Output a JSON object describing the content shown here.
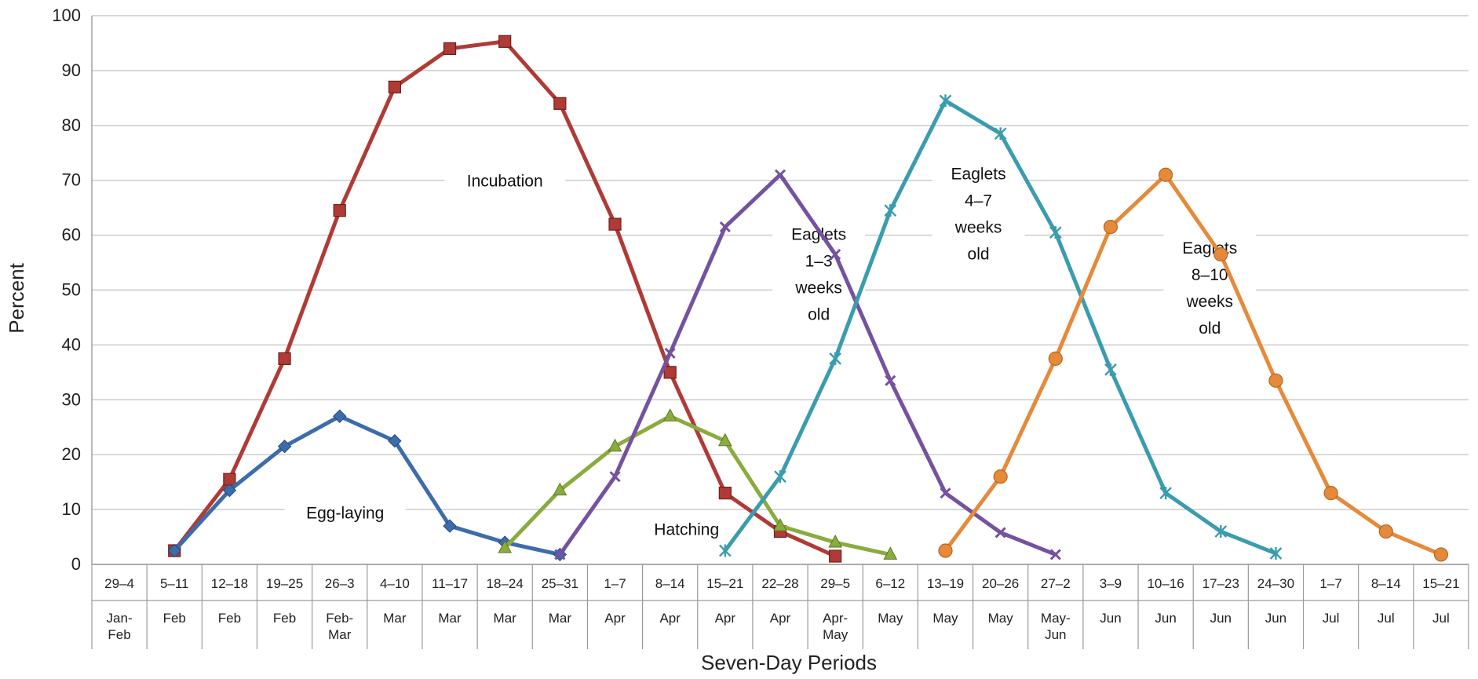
{
  "chart_data": {
    "type": "line",
    "xlabel": "Seven-Day Periods",
    "ylabel": "Percent",
    "ylim": [
      0,
      100
    ],
    "yticks": [
      0,
      10,
      20,
      30,
      40,
      50,
      60,
      70,
      80,
      90,
      100
    ],
    "grid": "horizontal",
    "categories": [
      {
        "days": "29–4",
        "month": "Jan-Feb"
      },
      {
        "days": "5–11",
        "month": "Feb"
      },
      {
        "days": "12–18",
        "month": "Feb"
      },
      {
        "days": "19–25",
        "month": "Feb"
      },
      {
        "days": "26–3",
        "month": "Feb-Mar"
      },
      {
        "days": "4–10",
        "month": "Mar"
      },
      {
        "days": "11–17",
        "month": "Mar"
      },
      {
        "days": "18–24",
        "month": "Mar"
      },
      {
        "days": "25–31",
        "month": "Mar"
      },
      {
        "days": "1–7",
        "month": "Apr"
      },
      {
        "days": "8–14",
        "month": "Apr"
      },
      {
        "days": "15–21",
        "month": "Apr"
      },
      {
        "days": "22–28",
        "month": "Apr"
      },
      {
        "days": "29–5",
        "month": "Apr-May"
      },
      {
        "days": "6–12",
        "month": "May"
      },
      {
        "days": "13–19",
        "month": "May"
      },
      {
        "days": "20–26",
        "month": "May"
      },
      {
        "days": "27–2",
        "month": "May-Jun"
      },
      {
        "days": "3–9",
        "month": "Jun"
      },
      {
        "days": "10–16",
        "month": "Jun"
      },
      {
        "days": "17–23",
        "month": "Jun"
      },
      {
        "days": "24–30",
        "month": "Jun"
      },
      {
        "days": "1–7",
        "month": "Jul"
      },
      {
        "days": "8–14",
        "month": "Jul"
      },
      {
        "days": "15–21",
        "month": "Jul"
      }
    ],
    "series": [
      {
        "key": "incubation",
        "color": "#b03a36",
        "marker": "square",
        "points": [
          [
            1,
            2.5
          ],
          [
            2,
            15.5
          ],
          [
            3,
            37.5
          ],
          [
            4,
            64.5
          ],
          [
            5,
            87
          ],
          [
            6,
            94
          ],
          [
            7,
            95.3
          ],
          [
            8,
            84
          ],
          [
            9,
            62
          ],
          [
            10,
            35
          ],
          [
            11,
            13
          ],
          [
            12,
            6
          ],
          [
            13,
            1.5
          ]
        ]
      },
      {
        "key": "egg-laying",
        "color": "#3d6cab",
        "marker": "diamond",
        "points": [
          [
            1,
            2.5
          ],
          [
            2,
            13.5
          ],
          [
            3,
            21.5
          ],
          [
            4,
            27
          ],
          [
            5,
            22.5
          ],
          [
            6,
            7
          ],
          [
            7,
            4
          ],
          [
            8,
            1.8
          ]
        ]
      },
      {
        "key": "hatching",
        "color": "#8aac3f",
        "marker": "triangle",
        "points": [
          [
            7,
            3
          ],
          [
            8,
            13.5
          ],
          [
            9,
            21.5
          ],
          [
            10,
            27
          ],
          [
            11,
            22.5
          ],
          [
            12,
            7
          ],
          [
            13,
            4
          ],
          [
            14,
            1.8
          ]
        ]
      },
      {
        "key": "eaglets-1-3",
        "color": "#7552a0",
        "marker": "x",
        "points": [
          [
            8,
            1.8
          ],
          [
            9,
            16
          ],
          [
            10,
            38.5
          ],
          [
            11,
            61.5
          ],
          [
            12,
            71
          ],
          [
            13,
            56.5
          ],
          [
            14,
            33.5
          ],
          [
            15,
            13
          ],
          [
            16,
            5.8
          ],
          [
            17,
            1.8
          ]
        ]
      },
      {
        "key": "eaglets-4-7",
        "color": "#3a9cae",
        "marker": "star",
        "points": [
          [
            11,
            2.5
          ],
          [
            12,
            16
          ],
          [
            13,
            37.5
          ],
          [
            14,
            64.5
          ],
          [
            15,
            84.5
          ],
          [
            16,
            78.5
          ],
          [
            17,
            60.5
          ],
          [
            18,
            35.5
          ],
          [
            19,
            13
          ],
          [
            20,
            6
          ],
          [
            21,
            2
          ]
        ]
      },
      {
        "key": "eaglets-8-10",
        "color": "#e58a3a",
        "marker": "circle",
        "points": [
          [
            15,
            2.5
          ],
          [
            16,
            16
          ],
          [
            17,
            37.5
          ],
          [
            18,
            61.5
          ],
          [
            19,
            71
          ],
          [
            20,
            56.5
          ],
          [
            21,
            33.5
          ],
          [
            22,
            13
          ],
          [
            23,
            6
          ],
          [
            24,
            1.8
          ]
        ]
      }
    ],
    "annotations": [
      {
        "name": "incubation",
        "lines": [
          "Incubation"
        ],
        "at": [
          7,
          70
        ]
      },
      {
        "name": "egg-laying",
        "lines": [
          "Egg-laying"
        ],
        "at": [
          4.1,
          9.5
        ]
      },
      {
        "name": "hatching",
        "lines": [
          "Hatching"
        ],
        "at": [
          10.3,
          6.5
        ]
      },
      {
        "name": "eaglets-1-3",
        "lines": [
          "Eaglets",
          "1–3",
          "weeks",
          "old"
        ],
        "at": [
          12.7,
          53
        ]
      },
      {
        "name": "eaglets-4-7",
        "lines": [
          "Eaglets",
          "4–7",
          "weeks",
          "old"
        ],
        "at": [
          15.6,
          64
        ]
      },
      {
        "name": "eaglets-8-10",
        "lines": [
          "Eaglets",
          "8–10",
          "weeks",
          "old"
        ],
        "at": [
          19.8,
          50.5
        ]
      }
    ]
  }
}
